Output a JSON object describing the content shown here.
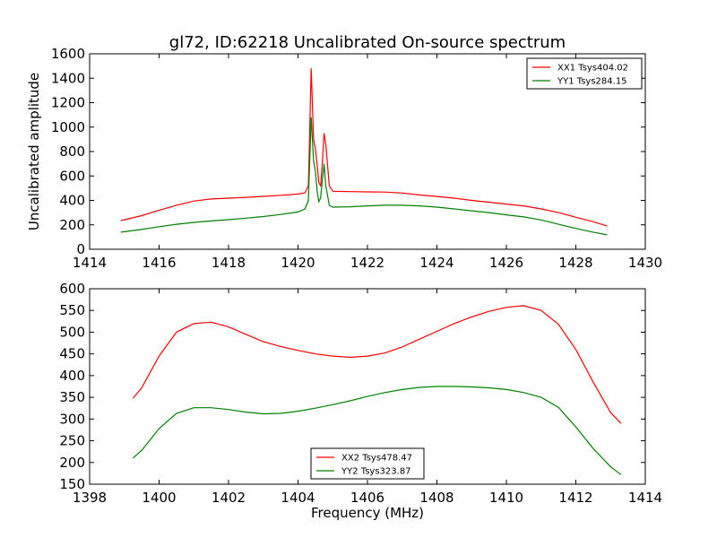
{
  "figure": {
    "title": "gl72, ID:62218 Uncalibrated On-source spectrum",
    "background": "#ffffff"
  },
  "chart_data": [
    {
      "type": "line",
      "title": "gl72, ID:62218 Uncalibrated On-source spectrum",
      "xlabel": "",
      "ylabel": "Uncalibrated amplitude",
      "xlim": [
        1414,
        1430
      ],
      "ylim": [
        0,
        1600
      ],
      "xticks": [
        1414,
        1416,
        1418,
        1420,
        1422,
        1424,
        1426,
        1428,
        1430
      ],
      "yticks": [
        0,
        200,
        400,
        600,
        800,
        1000,
        1200,
        1400,
        1600
      ],
      "grid": false,
      "legend_position": "top-right",
      "series": [
        {
          "name": "XX1 Tsys404.02",
          "color": "#ff0000",
          "points": [
            [
              1414.9,
              235
            ],
            [
              1415.5,
              275
            ],
            [
              1416.0,
              320
            ],
            [
              1416.5,
              360
            ],
            [
              1417.0,
              395
            ],
            [
              1417.5,
              412
            ],
            [
              1418.0,
              418
            ],
            [
              1418.5,
              425
            ],
            [
              1419.0,
              433
            ],
            [
              1419.5,
              442
            ],
            [
              1420.0,
              452
            ],
            [
              1420.2,
              462
            ],
            [
              1420.3,
              520
            ],
            [
              1420.38,
              1480
            ],
            [
              1420.45,
              900
            ],
            [
              1420.5,
              820
            ],
            [
              1420.55,
              700
            ],
            [
              1420.6,
              545
            ],
            [
              1420.65,
              520
            ],
            [
              1420.7,
              700
            ],
            [
              1420.75,
              950
            ],
            [
              1420.8,
              860
            ],
            [
              1420.9,
              520
            ],
            [
              1421.0,
              475
            ],
            [
              1421.5,
              472
            ],
            [
              1422.0,
              470
            ],
            [
              1422.5,
              468
            ],
            [
              1423.0,
              460
            ],
            [
              1423.5,
              445
            ],
            [
              1424.0,
              432
            ],
            [
              1424.5,
              418
            ],
            [
              1425.0,
              400
            ],
            [
              1425.5,
              385
            ],
            [
              1426.0,
              370
            ],
            [
              1426.5,
              355
            ],
            [
              1427.0,
              330
            ],
            [
              1427.5,
              300
            ],
            [
              1428.0,
              262
            ],
            [
              1428.5,
              225
            ],
            [
              1428.9,
              190
            ]
          ]
        },
        {
          "name": "YY1 Tsys284.15",
          "color": "#008000",
          "points": [
            [
              1414.9,
              140
            ],
            [
              1415.5,
              162
            ],
            [
              1416.0,
              185
            ],
            [
              1416.5,
              205
            ],
            [
              1417.0,
              220
            ],
            [
              1417.5,
              232
            ],
            [
              1418.0,
              242
            ],
            [
              1418.5,
              255
            ],
            [
              1419.0,
              268
            ],
            [
              1419.5,
              285
            ],
            [
              1420.0,
              305
            ],
            [
              1420.2,
              330
            ],
            [
              1420.3,
              400
            ],
            [
              1420.38,
              1080
            ],
            [
              1420.45,
              720
            ],
            [
              1420.5,
              640
            ],
            [
              1420.55,
              480
            ],
            [
              1420.6,
              390
            ],
            [
              1420.65,
              420
            ],
            [
              1420.7,
              560
            ],
            [
              1420.75,
              700
            ],
            [
              1420.8,
              520
            ],
            [
              1420.9,
              360
            ],
            [
              1421.0,
              345
            ],
            [
              1421.5,
              348
            ],
            [
              1422.0,
              355
            ],
            [
              1422.5,
              360
            ],
            [
              1423.0,
              360
            ],
            [
              1423.5,
              355
            ],
            [
              1424.0,
              345
            ],
            [
              1424.5,
              330
            ],
            [
              1425.0,
              315
            ],
            [
              1425.5,
              300
            ],
            [
              1426.0,
              282
            ],
            [
              1426.5,
              265
            ],
            [
              1427.0,
              240
            ],
            [
              1427.5,
              205
            ],
            [
              1428.0,
              170
            ],
            [
              1428.5,
              140
            ],
            [
              1428.9,
              118
            ]
          ]
        }
      ]
    },
    {
      "type": "line",
      "title": "",
      "xlabel": "Frequency (MHz)",
      "ylabel": "",
      "xlim": [
        1398,
        1414
      ],
      "ylim": [
        150,
        600
      ],
      "xticks": [
        1398,
        1400,
        1402,
        1404,
        1406,
        1408,
        1410,
        1412,
        1414
      ],
      "yticks": [
        150,
        200,
        250,
        300,
        350,
        400,
        450,
        500,
        550,
        600
      ],
      "grid": false,
      "legend_position": "bottom-center",
      "series": [
        {
          "name": "XX2 Tsys478.47",
          "color": "#ff0000",
          "points": [
            [
              1399.25,
              348
            ],
            [
              1399.5,
              372
            ],
            [
              1400.0,
              445
            ],
            [
              1400.5,
              500
            ],
            [
              1401.0,
              520
            ],
            [
              1401.5,
              523
            ],
            [
              1402.0,
              512
            ],
            [
              1402.5,
              495
            ],
            [
              1403.0,
              478
            ],
            [
              1403.5,
              467
            ],
            [
              1404.0,
              458
            ],
            [
              1404.5,
              450
            ],
            [
              1405.0,
              445
            ],
            [
              1405.5,
              442
            ],
            [
              1406.0,
              445
            ],
            [
              1406.5,
              452
            ],
            [
              1407.0,
              466
            ],
            [
              1407.5,
              484
            ],
            [
              1408.0,
              502
            ],
            [
              1408.5,
              520
            ],
            [
              1409.0,
              535
            ],
            [
              1409.5,
              548
            ],
            [
              1410.0,
              557
            ],
            [
              1410.5,
              561
            ],
            [
              1411.0,
              550
            ],
            [
              1411.5,
              518
            ],
            [
              1412.0,
              460
            ],
            [
              1412.5,
              385
            ],
            [
              1413.0,
              315
            ],
            [
              1413.3,
              290
            ]
          ]
        },
        {
          "name": "YY2 Tsys323.87",
          "color": "#008000",
          "points": [
            [
              1399.25,
              210
            ],
            [
              1399.5,
              228
            ],
            [
              1400.0,
              278
            ],
            [
              1400.5,
              313
            ],
            [
              1401.0,
              326
            ],
            [
              1401.5,
              326
            ],
            [
              1402.0,
              322
            ],
            [
              1402.5,
              316
            ],
            [
              1403.0,
              312
            ],
            [
              1403.5,
              313
            ],
            [
              1404.0,
              318
            ],
            [
              1404.5,
              325
            ],
            [
              1405.0,
              333
            ],
            [
              1405.5,
              342
            ],
            [
              1406.0,
              352
            ],
            [
              1406.5,
              361
            ],
            [
              1407.0,
              368
            ],
            [
              1407.5,
              373
            ],
            [
              1408.0,
              375
            ],
            [
              1408.5,
              375
            ],
            [
              1409.0,
              374
            ],
            [
              1409.5,
              372
            ],
            [
              1410.0,
              368
            ],
            [
              1410.5,
              361
            ],
            [
              1411.0,
              350
            ],
            [
              1411.5,
              327
            ],
            [
              1412.0,
              282
            ],
            [
              1412.5,
              232
            ],
            [
              1413.0,
              190
            ],
            [
              1413.3,
              172
            ]
          ]
        }
      ]
    }
  ]
}
